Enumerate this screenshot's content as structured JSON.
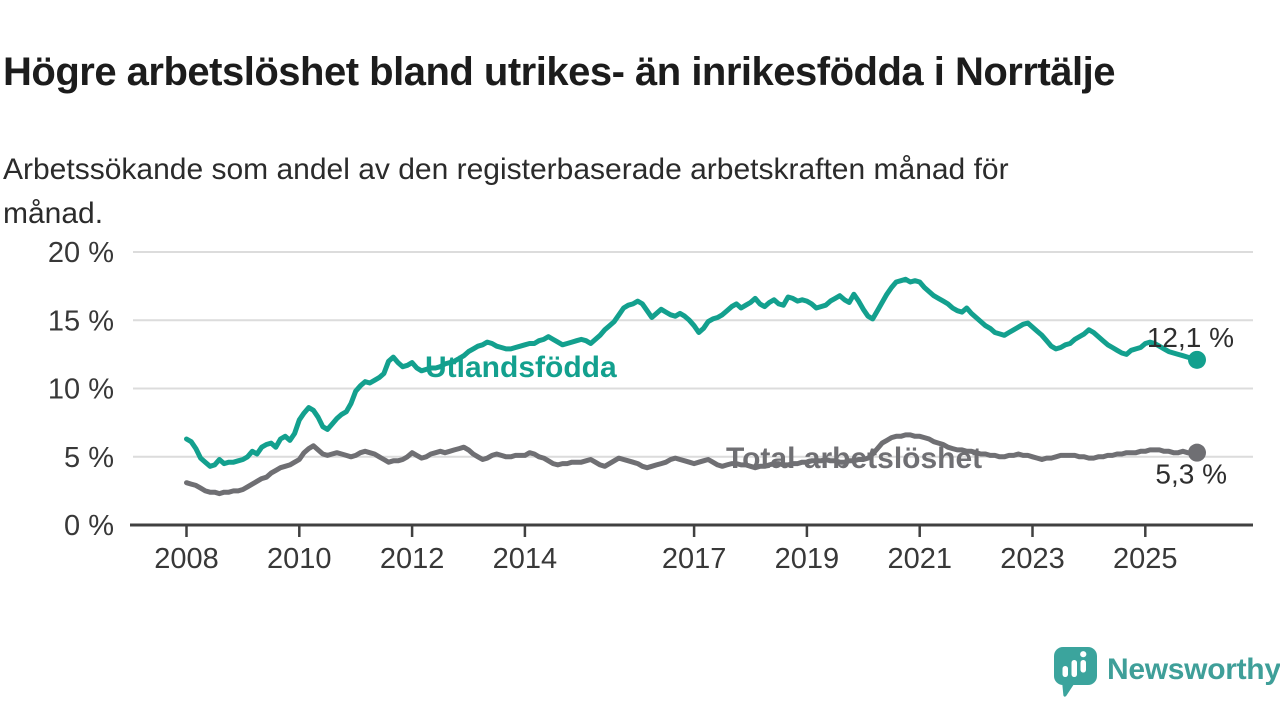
{
  "title": "Högre arbetslöshet bland utrikes- än inrikesfödda i Norrtälje",
  "subtitle_line1": "Arbetssökande som andel av den registerbaserade arbetskraften månad för",
  "subtitle_line2": "månad.",
  "branding": {
    "name": "Newsworthy",
    "icon": "newsworthy-speech-bubble-bar-chart-icon",
    "color": "#3f9f99"
  },
  "colors": {
    "foreign_born_line": "#13a08e",
    "total_line": "#6f6f73",
    "gridline": "#dcdcdc",
    "axis": "#404040",
    "axis_text": "#383838",
    "annotation_text": "#2e2e2e",
    "background": "#ffffff"
  },
  "chart_data": {
    "type": "line",
    "title": "Högre arbetslöshet bland utrikes- än inrikesfödda i Norrtälje",
    "subtitle": "Arbetssökande som andel av den registerbaserade arbetskraften månad för månad.",
    "grid": true,
    "legend": "inline-labels",
    "x_axis": {
      "ticks": [
        2008,
        2010,
        2012,
        2014,
        2017,
        2019,
        2021,
        2023,
        2025
      ],
      "tick_labels": [
        "2008",
        "2010",
        "2012",
        "2014",
        "2017",
        "2019",
        "2021",
        "2023",
        "2025"
      ],
      "range_years": [
        2007.1,
        2026.9
      ]
    },
    "y_axis": {
      "unit": "%",
      "ticks": [
        0,
        5,
        10,
        15,
        20
      ],
      "tick_labels": [
        "0 %",
        "5 %",
        "10 %",
        "15 %",
        "20 %"
      ],
      "range": [
        0,
        21.5
      ]
    },
    "series": [
      {
        "id": "total",
        "name": "Total arbetslöshet",
        "color": "#6f6f73",
        "end_value": 5.3,
        "end_label": "5,3 %",
        "start_year": 2008,
        "frequency": "monthly",
        "values": [
          3.1,
          3.0,
          2.9,
          2.7,
          2.5,
          2.4,
          2.4,
          2.3,
          2.4,
          2.4,
          2.5,
          2.5,
          2.6,
          2.8,
          3.0,
          3.2,
          3.4,
          3.5,
          3.8,
          4.0,
          4.2,
          4.3,
          4.4,
          4.6,
          4.8,
          5.3,
          5.6,
          5.8,
          5.5,
          5.2,
          5.1,
          5.2,
          5.3,
          5.2,
          5.1,
          5.0,
          5.1,
          5.3,
          5.4,
          5.3,
          5.2,
          5.0,
          4.8,
          4.6,
          4.7,
          4.7,
          4.8,
          5.0,
          5.3,
          5.1,
          4.9,
          5.0,
          5.2,
          5.3,
          5.4,
          5.3,
          5.4,
          5.5,
          5.6,
          5.7,
          5.5,
          5.2,
          5.0,
          4.8,
          4.9,
          5.1,
          5.2,
          5.1,
          5.0,
          5.0,
          5.1,
          5.1,
          5.1,
          5.3,
          5.2,
          5.0,
          4.9,
          4.7,
          4.5,
          4.4,
          4.5,
          4.5,
          4.6,
          4.6,
          4.6,
          4.7,
          4.8,
          4.6,
          4.4,
          4.3,
          4.5,
          4.7,
          4.9,
          4.8,
          4.7,
          4.6,
          4.5,
          4.3,
          4.2,
          4.3,
          4.4,
          4.5,
          4.6,
          4.8,
          4.9,
          4.8,
          4.7,
          4.6,
          4.5,
          4.6,
          4.7,
          4.8,
          4.6,
          4.4,
          4.3,
          4.4,
          4.5,
          4.5,
          4.4,
          4.4,
          4.3,
          4.2,
          4.3,
          4.3,
          4.4,
          4.5,
          4.5,
          4.4,
          4.4,
          4.5,
          4.5,
          4.6,
          4.6,
          4.7,
          4.7,
          4.7,
          4.8,
          4.7,
          4.7,
          4.6,
          4.6,
          4.7,
          4.7,
          4.8,
          4.8,
          4.9,
          5.2,
          5.6,
          6.0,
          6.2,
          6.4,
          6.5,
          6.5,
          6.6,
          6.6,
          6.5,
          6.5,
          6.4,
          6.3,
          6.1,
          6.0,
          5.9,
          5.7,
          5.6,
          5.5,
          5.5,
          5.4,
          5.4,
          5.3,
          5.2,
          5.2,
          5.1,
          5.1,
          5.0,
          5.0,
          5.1,
          5.1,
          5.2,
          5.1,
          5.1,
          5.0,
          4.9,
          4.8,
          4.9,
          4.9,
          5.0,
          5.1,
          5.1,
          5.1,
          5.1,
          5.0,
          5.0,
          4.9,
          4.9,
          5.0,
          5.0,
          5.1,
          5.1,
          5.2,
          5.2,
          5.3,
          5.3,
          5.3,
          5.4,
          5.4,
          5.5,
          5.5,
          5.5,
          5.4,
          5.4,
          5.3,
          5.3,
          5.4,
          5.3,
          5.3,
          5.3
        ]
      },
      {
        "id": "utlandsfodda",
        "name": "Utlandsfödda",
        "color": "#13a08e",
        "end_value": 12.1,
        "end_label": "12,1 %",
        "start_year": 2008,
        "frequency": "monthly",
        "values": [
          6.3,
          6.1,
          5.6,
          4.9,
          4.6,
          4.3,
          4.4,
          4.8,
          4.5,
          4.6,
          4.6,
          4.7,
          4.8,
          5.0,
          5.4,
          5.2,
          5.7,
          5.9,
          6.0,
          5.7,
          6.3,
          6.5,
          6.2,
          6.7,
          7.7,
          8.2,
          8.6,
          8.4,
          7.9,
          7.2,
          7.0,
          7.4,
          7.8,
          8.1,
          8.3,
          8.9,
          9.8,
          10.2,
          10.5,
          10.4,
          10.6,
          10.8,
          11.1,
          12.0,
          12.3,
          11.9,
          11.6,
          11.7,
          11.9,
          11.5,
          11.3,
          11.4,
          11.5,
          11.5,
          11.6,
          11.8,
          11.9,
          12.0,
          12.2,
          12.4,
          12.7,
          12.9,
          13.1,
          13.2,
          13.4,
          13.3,
          13.1,
          13.0,
          12.9,
          12.9,
          13.0,
          13.1,
          13.2,
          13.3,
          13.3,
          13.5,
          13.6,
          13.8,
          13.6,
          13.4,
          13.2,
          13.3,
          13.4,
          13.5,
          13.6,
          13.5,
          13.3,
          13.6,
          13.9,
          14.3,
          14.6,
          14.9,
          15.4,
          15.9,
          16.1,
          16.2,
          16.4,
          16.2,
          15.7,
          15.2,
          15.5,
          15.8,
          15.6,
          15.4,
          15.3,
          15.5,
          15.3,
          15.0,
          14.6,
          14.1,
          14.4,
          14.9,
          15.1,
          15.2,
          15.4,
          15.7,
          16.0,
          16.2,
          15.9,
          16.1,
          16.3,
          16.6,
          16.2,
          16.0,
          16.3,
          16.5,
          16.2,
          16.1,
          16.7,
          16.6,
          16.4,
          16.5,
          16.4,
          16.2,
          15.9,
          16.0,
          16.1,
          16.4,
          16.6,
          16.8,
          16.5,
          16.3,
          16.9,
          16.4,
          15.8,
          15.3,
          15.1,
          15.7,
          16.3,
          16.9,
          17.4,
          17.8,
          17.9,
          18.0,
          17.8,
          17.9,
          17.8,
          17.4,
          17.1,
          16.8,
          16.6,
          16.4,
          16.2,
          15.9,
          15.7,
          15.6,
          15.9,
          15.5,
          15.2,
          14.9,
          14.6,
          14.4,
          14.1,
          14.0,
          13.9,
          14.1,
          14.3,
          14.5,
          14.7,
          14.8,
          14.5,
          14.2,
          13.9,
          13.5,
          13.1,
          12.9,
          13.0,
          13.2,
          13.3,
          13.6,
          13.8,
          14.0,
          14.3,
          14.1,
          13.8,
          13.5,
          13.2,
          13.0,
          12.8,
          12.6,
          12.5,
          12.8,
          12.9,
          13.0,
          13.3,
          13.4,
          13.3,
          13.1,
          12.9,
          12.7,
          12.6,
          12.5,
          12.4,
          12.3,
          12.2,
          12.1
        ]
      }
    ],
    "annotations": [
      {
        "series": "utlandsfodda",
        "text": "12,1 %",
        "position": "above-end"
      },
      {
        "series": "total",
        "text": "5,3 %",
        "position": "below-end"
      }
    ]
  }
}
